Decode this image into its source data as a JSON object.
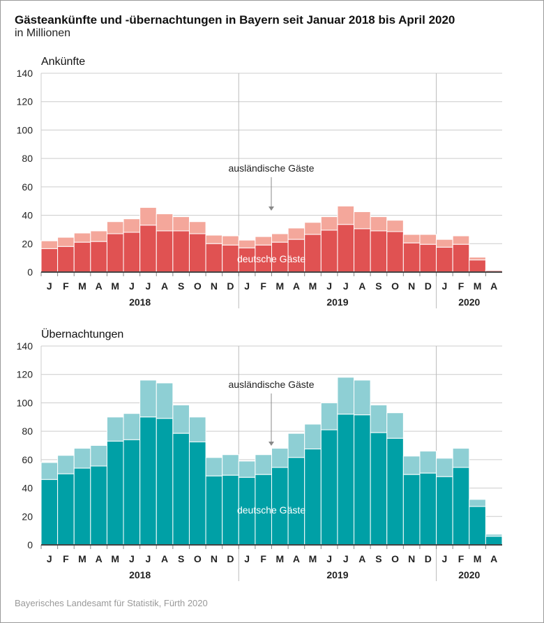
{
  "title": "Gästeankünfte und -übernachtungen in Bayern seit Januar 2018 bis April 2020",
  "subtitle": "in Millionen",
  "source": "Bayerisches Landesamt für Statistik, Fürth 2020",
  "colors": {
    "arr_de": "#e05252",
    "arr_foreign": "#f4a79b",
    "ov_de": "#00a0a6",
    "ov_foreign": "#8ecfd4"
  },
  "chart_data": [
    {
      "type": "bar",
      "stacked": true,
      "title": "Ankünfte",
      "ylim": [
        0,
        140
      ],
      "yticks": [
        0,
        20,
        40,
        60,
        80,
        100,
        120,
        140
      ],
      "categories": [
        "J",
        "F",
        "M",
        "A",
        "M",
        "J",
        "J",
        "A",
        "S",
        "O",
        "N",
        "D",
        "J",
        "F",
        "M",
        "A",
        "M",
        "J",
        "J",
        "A",
        "S",
        "O",
        "N",
        "D",
        "J",
        "F",
        "M",
        "A"
      ],
      "years": [
        "2018",
        "2019",
        "2020"
      ],
      "annotations": {
        "foreign": "ausländische Gäste",
        "domestic": "deutsche Gäste"
      },
      "series": [
        {
          "name": "deutsche Gäste",
          "values": [
            16.5,
            18,
            21,
            21.5,
            27,
            28,
            33,
            29,
            29,
            27,
            20,
            19,
            17,
            19,
            21,
            23,
            26.5,
            29.5,
            33.5,
            30.5,
            29,
            28.5,
            20.5,
            19.5,
            17.5,
            19.5,
            8.5,
            1
          ]
        },
        {
          "name": "ausländische Gäste",
          "values": [
            5.5,
            6.5,
            6.5,
            7.5,
            8.5,
            9.5,
            12.5,
            12,
            10,
            8.5,
            6,
            6.5,
            5.5,
            6,
            6,
            8,
            8.5,
            9.5,
            13,
            12,
            10,
            8,
            6,
            7,
            5.5,
            6,
            2,
            0.5
          ]
        }
      ]
    },
    {
      "type": "bar",
      "stacked": true,
      "title": "Übernachtungen",
      "ylim": [
        0,
        140
      ],
      "yticks": [
        0,
        20,
        40,
        60,
        80,
        100,
        120,
        140
      ],
      "categories": [
        "J",
        "F",
        "M",
        "A",
        "M",
        "J",
        "J",
        "A",
        "S",
        "O",
        "N",
        "D",
        "J",
        "F",
        "M",
        "A",
        "M",
        "J",
        "J",
        "A",
        "S",
        "O",
        "N",
        "D",
        "J",
        "F",
        "M",
        "A"
      ],
      "years": [
        "2018",
        "2019",
        "2020"
      ],
      "annotations": {
        "foreign": "ausländische Gäste",
        "domestic": "deutsche Gäste"
      },
      "series": [
        {
          "name": "deutsche Gäste",
          "values": [
            46,
            50,
            54,
            55.5,
            73,
            74,
            90,
            89,
            78.5,
            72.5,
            48.5,
            49,
            47.5,
            49.5,
            54.5,
            61.5,
            67.5,
            81,
            92,
            91.5,
            79,
            75,
            49.5,
            50.5,
            48,
            54.5,
            27,
            6
          ]
        },
        {
          "name": "ausländische Gäste",
          "values": [
            12,
            13,
            14,
            14.5,
            17,
            18.5,
            26,
            25,
            20,
            17.5,
            13,
            14.5,
            11.5,
            14,
            13.5,
            17,
            17.5,
            19,
            26,
            24.5,
            19.5,
            18,
            13,
            15.5,
            13,
            13.5,
            5,
            1.5
          ]
        }
      ]
    }
  ]
}
